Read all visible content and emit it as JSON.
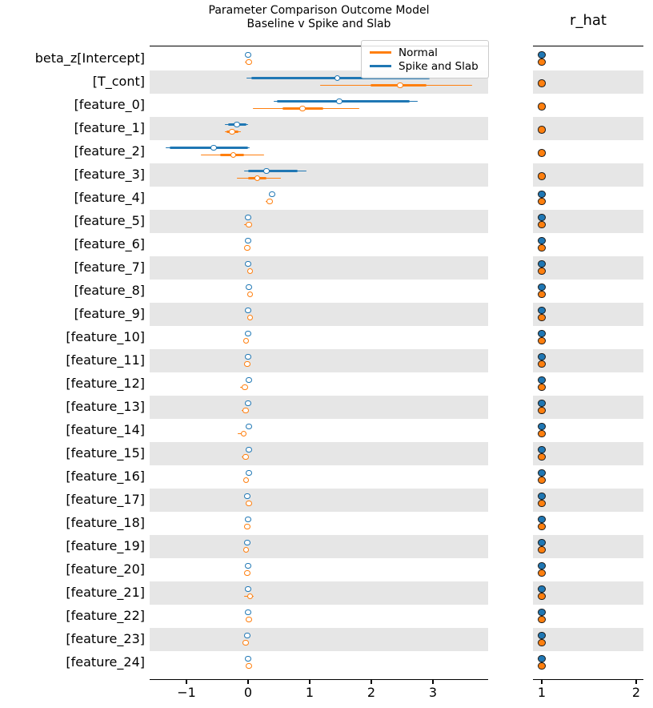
{
  "figure_title": {
    "line1": "Parameter Comparison Outcome Model",
    "line2": "Baseline v Spike and Slab"
  },
  "rhat_panel_title": "r_hat",
  "legend": {
    "items": [
      {
        "label": "Normal",
        "color": "#ff7f0e"
      },
      {
        "label": "Spike and Slab",
        "color": "#1f77b4"
      }
    ]
  },
  "colors": {
    "normal": "#ff7f0e",
    "spike_and_slab": "#1f77b4",
    "row_shading": "#e6e6e6",
    "marker_edge": "#1a1a1a",
    "axis": "#000000"
  },
  "chart_data": {
    "type": "forest",
    "title": "Parameter Comparison Outcome Model / Baseline v Spike and Slab",
    "legend_position": "upper right of posterior panel",
    "series_names": [
      "Normal",
      "Spike and Slab"
    ],
    "panels": [
      {
        "name": "posterior",
        "xlim": [
          -1.6,
          3.9
        ],
        "x_ticks": [
          {
            "value": -1,
            "label": "−1"
          },
          {
            "value": 0,
            "label": "0"
          },
          {
            "value": 1,
            "label": "1"
          },
          {
            "value": 2,
            "label": "2"
          },
          {
            "value": 3,
            "label": "3"
          }
        ]
      },
      {
        "name": "r_hat",
        "xlim": [
          0.91,
          2.17
        ],
        "x_ticks": [
          {
            "value": 1,
            "label": "1"
          },
          {
            "value": 2,
            "label": "2"
          }
        ]
      }
    ],
    "rows": [
      {
        "label": "beta_z[Intercept]",
        "spike_and_slab": {
          "lo": 0.0,
          "q1": 0.0,
          "median": 0.0,
          "q3": 0.0,
          "hi": 0.0,
          "r_hat": 1.0
        },
        "normal": {
          "lo": -0.05,
          "q1": 0.0,
          "median": 0.01,
          "q3": 0.02,
          "hi": 0.03,
          "r_hat": 1.0
        }
      },
      {
        "label": "[T_cont]",
        "spike_and_slab": {
          "lo": -0.03,
          "q1": 0.05,
          "median": 1.45,
          "q3": 2.95,
          "hi": 3.08,
          "r_hat": null
        },
        "normal": {
          "lo": 1.17,
          "q1": 1.99,
          "median": 2.47,
          "q3": 2.9,
          "hi": 3.64,
          "r_hat": 1.0
        }
      },
      {
        "label": "[feature_0]",
        "spike_and_slab": {
          "lo": 0.42,
          "q1": 0.47,
          "median": 1.48,
          "q3": 2.62,
          "hi": 2.75,
          "r_hat": null
        },
        "normal": {
          "lo": 0.08,
          "q1": 0.56,
          "median": 0.88,
          "q3": 1.22,
          "hi": 1.81,
          "r_hat": 1.0
        }
      },
      {
        "label": "[feature_1]",
        "spike_and_slab": {
          "lo": -0.38,
          "q1": -0.33,
          "median": -0.18,
          "q3": -0.02,
          "hi": 0.0,
          "r_hat": null
        },
        "normal": {
          "lo": -0.38,
          "q1": -0.35,
          "median": -0.26,
          "q3": -0.15,
          "hi": -0.12,
          "r_hat": 1.0
        }
      },
      {
        "label": "[feature_2]",
        "spike_and_slab": {
          "lo": -1.34,
          "q1": -1.27,
          "median": -0.56,
          "q3": 0.0,
          "hi": 0.02,
          "r_hat": null
        },
        "normal": {
          "lo": -0.77,
          "q1": -0.45,
          "median": -0.24,
          "q3": -0.06,
          "hi": 0.26,
          "r_hat": 1.0
        }
      },
      {
        "label": "[feature_3]",
        "spike_and_slab": {
          "lo": -0.06,
          "q1": 0.0,
          "median": 0.3,
          "q3": 0.8,
          "hi": 0.95,
          "r_hat": null
        },
        "normal": {
          "lo": -0.18,
          "q1": 0.0,
          "median": 0.15,
          "q3": 0.3,
          "hi": 0.53,
          "r_hat": 1.0
        }
      },
      {
        "label": "[feature_4]",
        "spike_and_slab": {
          "lo": 0.39,
          "q1": 0.39,
          "median": 0.39,
          "q3": 0.39,
          "hi": 0.39,
          "r_hat": 1.0
        },
        "normal": {
          "lo": 0.28,
          "q1": 0.33,
          "median": 0.35,
          "q3": 0.37,
          "hi": 0.37,
          "r_hat": 1.0
        }
      },
      {
        "label": "[feature_5]",
        "spike_and_slab": {
          "lo": 0.0,
          "q1": 0.0,
          "median": 0.0,
          "q3": 0.0,
          "hi": 0.0,
          "r_hat": 1.0
        },
        "normal": {
          "lo": -0.07,
          "q1": 0.01,
          "median": 0.01,
          "q3": 0.01,
          "hi": 0.02,
          "r_hat": 1.0
        }
      },
      {
        "label": "[feature_6]",
        "spike_and_slab": {
          "lo": 0.0,
          "q1": 0.0,
          "median": 0.0,
          "q3": 0.0,
          "hi": 0.0,
          "r_hat": 1.0
        },
        "normal": {
          "lo": -0.03,
          "q1": -0.01,
          "median": -0.01,
          "q3": -0.01,
          "hi": 0.01,
          "r_hat": 1.0
        }
      },
      {
        "label": "[feature_7]",
        "spike_and_slab": {
          "lo": 0.0,
          "q1": 0.0,
          "median": 0.0,
          "q3": 0.0,
          "hi": 0.0,
          "r_hat": 1.0
        },
        "normal": {
          "lo": 0.0,
          "q1": 0.03,
          "median": 0.03,
          "q3": 0.03,
          "hi": 0.05,
          "r_hat": 1.0
        }
      },
      {
        "label": "[feature_8]",
        "spike_and_slab": {
          "lo": 0.01,
          "q1": 0.01,
          "median": 0.01,
          "q3": 0.01,
          "hi": 0.01,
          "r_hat": 1.0
        },
        "normal": {
          "lo": 0.0,
          "q1": 0.03,
          "median": 0.03,
          "q3": 0.03,
          "hi": 0.04,
          "r_hat": 1.0
        }
      },
      {
        "label": "[feature_9]",
        "spike_and_slab": {
          "lo": 0.0,
          "q1": 0.0,
          "median": 0.0,
          "q3": 0.0,
          "hi": 0.0,
          "r_hat": 1.0
        },
        "normal": {
          "lo": -0.01,
          "q1": 0.03,
          "median": 0.03,
          "q3": 0.03,
          "hi": 0.04,
          "r_hat": 1.0
        }
      },
      {
        "label": "[feature_10]",
        "spike_and_slab": {
          "lo": 0.0,
          "q1": 0.0,
          "median": 0.0,
          "q3": 0.0,
          "hi": 0.0,
          "r_hat": 1.0
        },
        "normal": {
          "lo": -0.05,
          "q1": -0.03,
          "median": -0.03,
          "q3": -0.03,
          "hi": 0.0,
          "r_hat": 1.0
        }
      },
      {
        "label": "[feature_11]",
        "spike_and_slab": {
          "lo": 0.0,
          "q1": 0.0,
          "median": 0.0,
          "q3": 0.0,
          "hi": 0.0,
          "r_hat": 1.0
        },
        "normal": {
          "lo": -0.03,
          "q1": -0.01,
          "median": -0.01,
          "q3": -0.01,
          "hi": 0.0,
          "r_hat": 1.0
        }
      },
      {
        "label": "[feature_12]",
        "spike_and_slab": {
          "lo": 0.01,
          "q1": 0.01,
          "median": 0.01,
          "q3": 0.01,
          "hi": 0.01,
          "r_hat": 1.0
        },
        "normal": {
          "lo": -0.13,
          "q1": -0.05,
          "median": -0.05,
          "q3": -0.05,
          "hi": -0.02,
          "r_hat": 1.0
        }
      },
      {
        "label": "[feature_13]",
        "spike_and_slab": {
          "lo": 0.0,
          "q1": 0.0,
          "median": 0.0,
          "q3": 0.0,
          "hi": 0.0,
          "r_hat": 1.0
        },
        "normal": {
          "lo": -0.1,
          "q1": -0.04,
          "median": -0.04,
          "q3": -0.04,
          "hi": 0.0,
          "r_hat": 1.0
        }
      },
      {
        "label": "[feature_14]",
        "spike_and_slab": {
          "lo": 0.01,
          "q1": 0.01,
          "median": 0.01,
          "q3": 0.01,
          "hi": 0.01,
          "r_hat": 1.0
        },
        "normal": {
          "lo": -0.17,
          "q1": -0.07,
          "median": -0.07,
          "q3": -0.07,
          "hi": -0.02,
          "r_hat": 1.0
        }
      },
      {
        "label": "[feature_15]",
        "spike_and_slab": {
          "lo": 0.01,
          "q1": 0.01,
          "median": 0.01,
          "q3": 0.01,
          "hi": 0.01,
          "r_hat": 1.0
        },
        "normal": {
          "lo": -0.1,
          "q1": -0.04,
          "median": -0.04,
          "q3": -0.04,
          "hi": 0.0,
          "r_hat": 1.0
        }
      },
      {
        "label": "[feature_16]",
        "spike_and_slab": {
          "lo": 0.01,
          "q1": 0.01,
          "median": 0.01,
          "q3": 0.01,
          "hi": 0.01,
          "r_hat": 1.0
        },
        "normal": {
          "lo": -0.06,
          "q1": -0.03,
          "median": -0.03,
          "q3": -0.03,
          "hi": 0.0,
          "r_hat": 1.0
        }
      },
      {
        "label": "[feature_17]",
        "spike_and_slab": {
          "lo": -0.01,
          "q1": -0.01,
          "median": -0.01,
          "q3": -0.01,
          "hi": -0.01,
          "r_hat": 1.0
        },
        "normal": {
          "lo": -0.01,
          "q1": 0.01,
          "median": 0.01,
          "q3": 0.01,
          "hi": 0.04,
          "r_hat": 1.0
        }
      },
      {
        "label": "[feature_18]",
        "spike_and_slab": {
          "lo": 0.0,
          "q1": 0.0,
          "median": 0.0,
          "q3": 0.0,
          "hi": 0.0,
          "r_hat": 1.0
        },
        "normal": {
          "lo": -0.06,
          "q1": -0.01,
          "median": -0.01,
          "q3": -0.01,
          "hi": 0.01,
          "r_hat": 1.0
        }
      },
      {
        "label": "[feature_19]",
        "spike_and_slab": {
          "lo": -0.01,
          "q1": -0.01,
          "median": -0.01,
          "q3": -0.01,
          "hi": -0.01,
          "r_hat": 1.0
        },
        "normal": {
          "lo": -0.08,
          "q1": -0.03,
          "median": -0.03,
          "q3": -0.03,
          "hi": 0.0,
          "r_hat": 1.0
        }
      },
      {
        "label": "[feature_20]",
        "spike_and_slab": {
          "lo": 0.0,
          "q1": 0.0,
          "median": 0.0,
          "q3": 0.0,
          "hi": 0.0,
          "r_hat": 1.0
        },
        "normal": {
          "lo": -0.05,
          "q1": -0.01,
          "median": -0.01,
          "q3": -0.01,
          "hi": 0.01,
          "r_hat": 1.0
        }
      },
      {
        "label": "[feature_21]",
        "spike_and_slab": {
          "lo": 0.0,
          "q1": 0.0,
          "median": 0.0,
          "q3": 0.0,
          "hi": 0.0,
          "r_hat": 1.0
        },
        "normal": {
          "lo": -0.07,
          "q1": 0.03,
          "median": 0.03,
          "q3": 0.03,
          "hi": 0.09,
          "r_hat": 1.0
        }
      },
      {
        "label": "[feature_22]",
        "spike_and_slab": {
          "lo": 0.0,
          "q1": 0.0,
          "median": 0.0,
          "q3": 0.0,
          "hi": 0.0,
          "r_hat": 1.0
        },
        "normal": {
          "lo": -0.04,
          "q1": 0.01,
          "median": 0.01,
          "q3": 0.01,
          "hi": 0.03,
          "r_hat": 1.0
        }
      },
      {
        "label": "[feature_23]",
        "spike_and_slab": {
          "lo": -0.01,
          "q1": -0.01,
          "median": -0.01,
          "q3": -0.01,
          "hi": -0.01,
          "r_hat": 1.0
        },
        "normal": {
          "lo": -0.09,
          "q1": -0.04,
          "median": -0.04,
          "q3": -0.04,
          "hi": 0.0,
          "r_hat": 1.0
        }
      },
      {
        "label": "[feature_24]",
        "spike_and_slab": {
          "lo": 0.0,
          "q1": 0.0,
          "median": 0.0,
          "q3": 0.0,
          "hi": 0.0,
          "r_hat": 1.0
        },
        "normal": {
          "lo": -0.02,
          "q1": 0.01,
          "median": 0.01,
          "q3": 0.01,
          "hi": 0.03,
          "r_hat": 1.0
        }
      }
    ]
  }
}
